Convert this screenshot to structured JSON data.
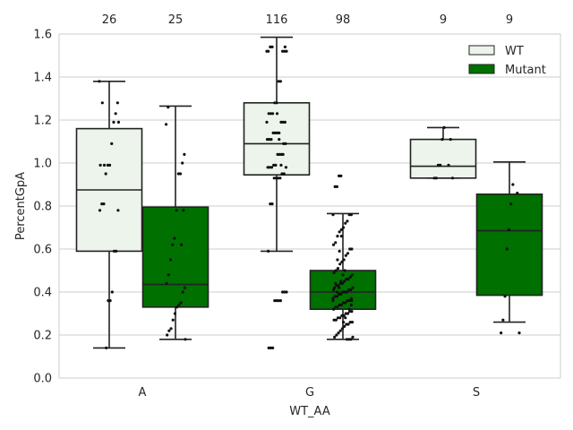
{
  "chart_data": {
    "type": "box",
    "xlabel": "WT_AA",
    "ylabel": "PercentGpA",
    "ylim": [
      0.0,
      1.6
    ],
    "yticks": [
      "0.0",
      "0.2",
      "0.4",
      "0.6",
      "0.8",
      "1.0",
      "1.2",
      "1.4",
      "1.6"
    ],
    "categories": [
      "A",
      "G",
      "S"
    ],
    "grid": true,
    "legend_position": "top-right",
    "series": [
      {
        "name": "WT",
        "color": "#ecf4ec",
        "counts": [
          "26",
          "116",
          "9"
        ],
        "boxes": [
          {
            "whisker_low": 0.14,
            "q1": 0.59,
            "median": 0.875,
            "q3": 1.16,
            "whisker_high": 1.38
          },
          {
            "whisker_low": 0.59,
            "q1": 0.945,
            "median": 1.09,
            "q3": 1.28,
            "whisker_high": 1.585
          },
          {
            "whisker_low": 0.93,
            "q1": 0.93,
            "median": 0.985,
            "q3": 1.11,
            "whisker_high": 1.165
          }
        ],
        "points": [
          [
            1.38,
            1.28,
            1.23,
            1.19,
            1.09,
            0.99,
            0.99,
            0.95,
            0.81,
            0.81,
            0.78,
            0.78,
            0.59,
            0.59,
            0.4,
            0.36,
            0.36,
            0.14,
            0.99,
            1.28,
            0.99,
            1.19
          ],
          [
            1.54,
            1.54,
            1.52,
            1.52,
            1.52,
            1.52,
            1.38,
            1.38,
            1.28,
            1.28,
            1.23,
            1.23,
            1.23,
            1.19,
            1.19,
            1.19,
            1.19,
            1.14,
            1.14,
            1.14,
            1.14,
            1.11,
            1.11,
            1.11,
            1.09,
            1.09,
            1.04,
            1.04,
            1.04,
            0.99,
            0.99,
            0.98,
            0.98,
            0.98,
            0.98,
            0.95,
            0.95,
            0.93,
            0.93,
            0.93,
            0.93,
            0.81,
            0.81,
            0.59,
            0.4,
            0.4,
            0.4,
            0.36,
            0.36,
            0.36,
            0.36,
            0.14,
            0.14,
            0.14,
            1.52,
            1.54,
            1.04,
            0.99,
            1.11,
            1.23
          ],
          [
            1.165,
            1.11,
            0.99,
            0.99,
            0.93,
            0.93,
            0.93,
            1.11,
            0.99
          ]
        ]
      },
      {
        "name": "Mutant",
        "color": "#007000",
        "counts": [
          "25",
          "98",
          "9"
        ],
        "boxes": [
          {
            "whisker_low": 0.18,
            "q1": 0.33,
            "median": 0.435,
            "q3": 0.795,
            "whisker_high": 1.265
          },
          {
            "whisker_low": 0.18,
            "q1": 0.32,
            "median": 0.4,
            "q3": 0.5,
            "whisker_high": 0.765
          },
          {
            "whisker_low": 0.26,
            "q1": 0.385,
            "median": 0.685,
            "q3": 0.855,
            "whisker_high": 1.005
          }
        ],
        "points": [
          [
            1.26,
            1.18,
            1.04,
            1.0,
            0.95,
            0.95,
            0.78,
            0.65,
            0.62,
            0.55,
            0.48,
            0.44,
            0.42,
            0.4,
            0.35,
            0.34,
            0.33,
            0.3,
            0.27,
            0.23,
            0.22,
            0.2,
            0.18,
            0.78,
            0.62
          ],
          [
            0.94,
            0.94,
            0.89,
            0.89,
            0.76,
            0.76,
            0.76,
            0.73,
            0.72,
            0.7,
            0.69,
            0.68,
            0.66,
            0.63,
            0.62,
            0.6,
            0.6,
            0.58,
            0.57,
            0.55,
            0.54,
            0.53,
            0.51,
            0.5,
            0.49,
            0.48,
            0.47,
            0.46,
            0.46,
            0.45,
            0.44,
            0.44,
            0.43,
            0.43,
            0.42,
            0.42,
            0.41,
            0.41,
            0.4,
            0.4,
            0.4,
            0.39,
            0.39,
            0.38,
            0.38,
            0.37,
            0.37,
            0.36,
            0.36,
            0.35,
            0.35,
            0.34,
            0.34,
            0.33,
            0.33,
            0.32,
            0.31,
            0.31,
            0.3,
            0.3,
            0.29,
            0.29,
            0.28,
            0.28,
            0.27,
            0.27,
            0.26,
            0.26,
            0.25,
            0.25,
            0.24,
            0.23,
            0.22,
            0.21,
            0.2,
            0.19,
            0.19,
            0.18,
            0.18,
            0.18,
            0.5,
            0.48,
            0.45,
            0.42,
            0.4,
            0.38,
            0.36,
            0.34,
            0.32,
            0.3,
            0.28,
            0.26,
            0.66,
            0.59,
            0.55,
            0.44,
            0.41,
            0.36
          ],
          [
            0.9,
            0.81,
            0.69,
            0.6,
            0.38,
            0.27,
            0.21,
            0.21,
            0.86
          ]
        ]
      }
    ]
  }
}
